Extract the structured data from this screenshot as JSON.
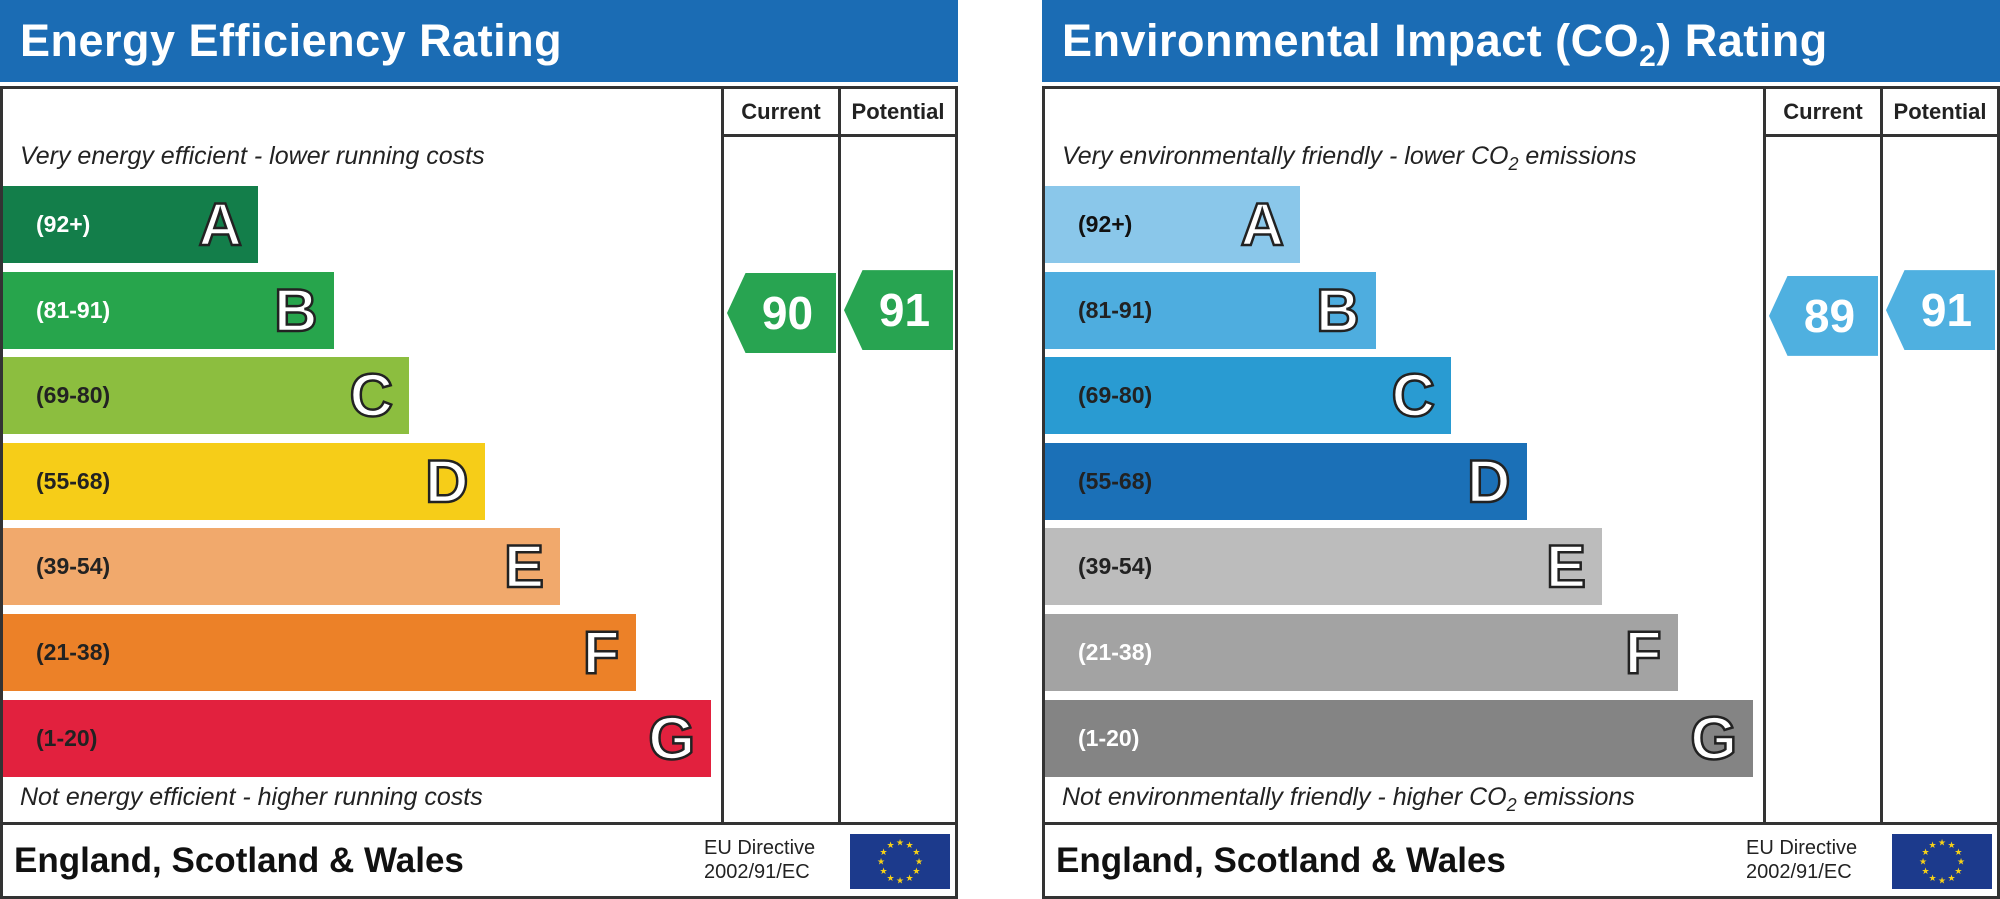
{
  "chart_data": [
    {
      "type": "bar",
      "title": "Energy Efficiency Rating",
      "columns": [
        "Current",
        "Potential"
      ],
      "top_caption": "Very energy efficient - lower running costs",
      "bottom_caption": "Not energy efficient - higher running costs",
      "bands": [
        {
          "range": "(92+)",
          "letter": "A",
          "color": "#137e4a",
          "text_color": "#ffffff"
        },
        {
          "range": "(81-91)",
          "letter": "B",
          "color": "#27a54c",
          "text_color": "#ffffff"
        },
        {
          "range": "(69-80)",
          "letter": "C",
          "color": "#8cbe3f",
          "text_color": "#222222"
        },
        {
          "range": "(55-68)",
          "letter": "D",
          "color": "#f6cd18",
          "text_color": "#222222"
        },
        {
          "range": "(39-54)",
          "letter": "E",
          "color": "#f1a96c",
          "text_color": "#222222"
        },
        {
          "range": "(21-38)",
          "letter": "F",
          "color": "#ec8128",
          "text_color": "#222222"
        },
        {
          "range": "(1-20)",
          "letter": "G",
          "color": "#e2213e",
          "text_color": "#222222"
        }
      ],
      "current": {
        "value": "90",
        "color": "#28a451"
      },
      "potential": {
        "value": "91",
        "color": "#28a451"
      },
      "footer": "England, Scotland & Wales",
      "eu_line1": "EU Directive",
      "eu_line2": "2002/91/EC"
    },
    {
      "type": "bar",
      "title_parts": [
        "Environmental Impact (CO",
        "2",
        ") Rating"
      ],
      "columns": [
        "Current",
        "Potential"
      ],
      "top_caption_parts": [
        "Very environmentally friendly - lower CO",
        "2",
        " emissions"
      ],
      "bottom_caption_parts": [
        "Not environmentally friendly - higher CO",
        "2",
        " emissions"
      ],
      "bands": [
        {
          "range": "(92+)",
          "letter": "A",
          "color": "#8ac7ea",
          "text_color": "#111111"
        },
        {
          "range": "(81-91)",
          "letter": "B",
          "color": "#4eaddf",
          "text_color": "#222222"
        },
        {
          "range": "(69-80)",
          "letter": "C",
          "color": "#299bd2",
          "text_color": "#222222"
        },
        {
          "range": "(55-68)",
          "letter": "D",
          "color": "#1b70b7",
          "text_color": "#222222"
        },
        {
          "range": "(39-54)",
          "letter": "E",
          "color": "#bcbcbc",
          "text_color": "#222222"
        },
        {
          "range": "(21-38)",
          "letter": "F",
          "color": "#a3a3a3",
          "text_color": "#ffffff"
        },
        {
          "range": "(1-20)",
          "letter": "G",
          "color": "#848484",
          "text_color": "#ffffff"
        }
      ],
      "current": {
        "value": "89",
        "color": "#4fb0e0"
      },
      "potential": {
        "value": "91",
        "color": "#4fb0e0"
      },
      "footer": "England, Scotland & Wales",
      "eu_line1": "EU Directive",
      "eu_line2": "2002/91/EC"
    }
  ]
}
